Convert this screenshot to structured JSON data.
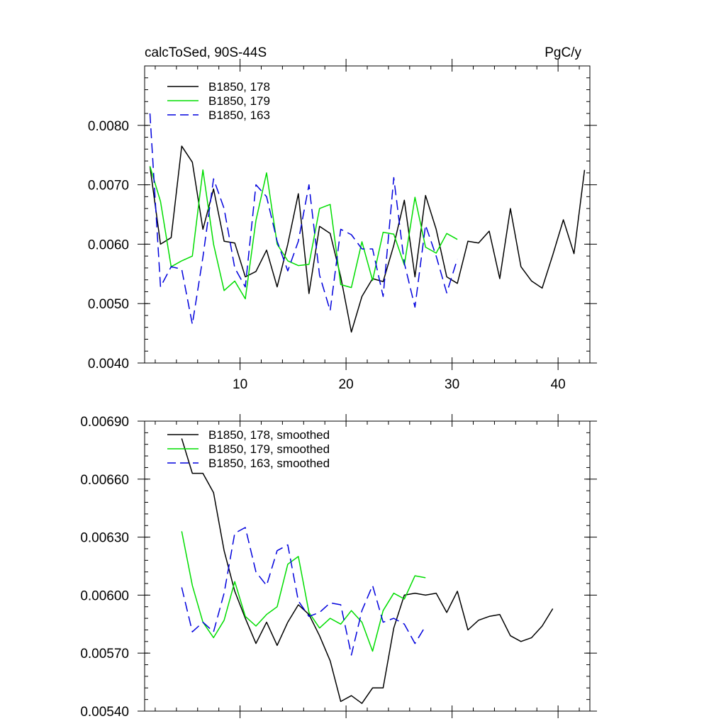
{
  "chart_data": [
    {
      "type": "line",
      "title": "calcToSed, 90S-44S",
      "units": "PgC/y",
      "xlim": [
        1,
        43
      ],
      "ylim": [
        0.004,
        0.009
      ],
      "xticks": [
        10,
        20,
        30,
        40
      ],
      "xtick_labels": [
        "10",
        "20",
        "30",
        "40"
      ],
      "yticks": [
        0.004,
        0.005,
        0.006,
        0.007,
        0.008
      ],
      "ytick_labels": [
        "0.0040",
        "0.0050",
        "0.0060",
        "0.0070",
        "0.0080"
      ],
      "grid": false,
      "legend_position": "top-left",
      "series": [
        {
          "name": "B1850, 178",
          "color": "#000000",
          "dash": "solid",
          "x": [
            1.5,
            2.5,
            3.5,
            4.5,
            5.5,
            6.5,
            7.5,
            8.5,
            9.5,
            10.5,
            11.5,
            12.5,
            13.5,
            14.5,
            15.5,
            16.5,
            17.5,
            18.5,
            19.5,
            20.5,
            21.5,
            22.5,
            23.5,
            24.5,
            25.5,
            26.5,
            27.5,
            28.5,
            29.5,
            30.5,
            31.5,
            32.5,
            33.5,
            34.5,
            35.5,
            36.5,
            37.5,
            38.5,
            39.5,
            40.5,
            41.5,
            42.5
          ],
          "values": [
            0.00731,
            0.006,
            0.00611,
            0.00765,
            0.00738,
            0.00625,
            0.00693,
            0.00605,
            0.00602,
            0.00545,
            0.00554,
            0.0059,
            0.00528,
            0.006,
            0.00685,
            0.00517,
            0.0063,
            0.00618,
            0.00545,
            0.00452,
            0.00512,
            0.00542,
            0.00537,
            0.00598,
            0.00674,
            0.00545,
            0.00682,
            0.00625,
            0.00545,
            0.00534,
            0.00605,
            0.00602,
            0.00622,
            0.00542,
            0.0066,
            0.00562,
            0.00538,
            0.00526,
            0.00582,
            0.00641,
            0.00584,
            0.00725
          ]
        },
        {
          "name": "B1850, 179",
          "color": "#00dd00",
          "dash": "solid",
          "x": [
            1.5,
            2.5,
            3.5,
            4.5,
            5.5,
            6.5,
            7.5,
            8.5,
            9.5,
            10.5,
            11.5,
            12.5,
            13.5,
            14.5,
            15.5,
            16.5,
            17.5,
            18.5,
            19.5,
            20.5,
            21.5,
            22.5,
            23.5,
            24.5,
            25.5,
            26.5,
            27.5,
            28.5,
            29.5,
            30.5
          ],
          "values": [
            0.00731,
            0.00672,
            0.00562,
            0.00572,
            0.0058,
            0.00725,
            0.006,
            0.00522,
            0.00538,
            0.00508,
            0.0064,
            0.0072,
            0.006,
            0.00572,
            0.00564,
            0.00566,
            0.0066,
            0.00667,
            0.00532,
            0.00527,
            0.00604,
            0.00539,
            0.0062,
            0.00617,
            0.00565,
            0.00679,
            0.00595,
            0.00585,
            0.00618,
            0.00608
          ]
        },
        {
          "name": "B1850, 163",
          "color": "#0000dd",
          "dash": "dashed",
          "x": [
            1.5,
            2.5,
            3.5,
            4.5,
            5.5,
            6.5,
            7.5,
            8.5,
            9.5,
            10.5,
            11.5,
            12.5,
            13.5,
            14.5,
            15.5,
            16.5,
            17.5,
            18.5,
            19.5,
            20.5,
            21.5,
            22.5,
            23.5,
            24.5,
            25.5,
            26.5,
            27.5,
            28.5,
            29.5,
            30.5
          ],
          "values": [
            0.0082,
            0.00528,
            0.00562,
            0.00558,
            0.00465,
            0.00578,
            0.0071,
            0.0066,
            0.0056,
            0.00528,
            0.007,
            0.0068,
            0.00605,
            0.00555,
            0.00605,
            0.007,
            0.00548,
            0.00488,
            0.00625,
            0.00616,
            0.00592,
            0.00592,
            0.00512,
            0.00712,
            0.00568,
            0.00494,
            0.00632,
            0.0058,
            0.00518,
            0.00575
          ]
        }
      ]
    },
    {
      "type": "line",
      "title": "",
      "xlim": [
        1,
        43
      ],
      "ylim": [
        0.0054,
        0.0069
      ],
      "xticks": [
        10,
        20,
        30,
        40
      ],
      "xtick_labels": [],
      "yticks": [
        0.0054,
        0.0057,
        0.006,
        0.0063,
        0.0066,
        0.0069
      ],
      "ytick_labels": [
        "0.00540",
        "0.00570",
        "0.00600",
        "0.00630",
        "0.00660",
        "0.00690"
      ],
      "grid": false,
      "legend_position": "top-left",
      "series": [
        {
          "name": "B1850, 178, smoothed",
          "color": "#000000",
          "dash": "solid",
          "x": [
            4.5,
            5.5,
            6.5,
            7.5,
            8.5,
            9.5,
            10.5,
            11.5,
            12.5,
            13.5,
            14.5,
            15.5,
            16.5,
            17.5,
            18.5,
            19.5,
            20.5,
            21.5,
            22.5,
            23.5,
            24.5,
            25.5,
            26.5,
            27.5,
            28.5,
            29.5,
            30.5,
            31.5,
            32.5,
            33.5,
            34.5,
            35.5,
            36.5,
            37.5,
            38.5,
            39.5
          ],
          "values": [
            0.00681,
            0.00663,
            0.00663,
            0.00653,
            0.00623,
            0.00602,
            0.00588,
            0.00575,
            0.00586,
            0.00574,
            0.00586,
            0.00595,
            0.0059,
            0.00579,
            0.00566,
            0.00545,
            0.00548,
            0.00544,
            0.00552,
            0.00552,
            0.00583,
            0.006,
            0.00601,
            0.006,
            0.00601,
            0.00591,
            0.00602,
            0.00582,
            0.00587,
            0.00589,
            0.0059,
            0.00579,
            0.00576,
            0.00578,
            0.00584,
            0.00593
          ]
        },
        {
          "name": "B1850, 179, smoothed",
          "color": "#00dd00",
          "dash": "solid",
          "x": [
            4.5,
            5.5,
            6.5,
            7.5,
            8.5,
            9.5,
            10.5,
            11.5,
            12.5,
            13.5,
            14.5,
            15.5,
            16.5,
            17.5,
            18.5,
            19.5,
            20.5,
            21.5,
            22.5,
            23.5,
            24.5,
            25.5,
            26.5,
            27.5
          ],
          "values": [
            0.00633,
            0.00605,
            0.00586,
            0.00578,
            0.00587,
            0.00607,
            0.00589,
            0.00584,
            0.0059,
            0.00594,
            0.00616,
            0.0062,
            0.00591,
            0.00583,
            0.00588,
            0.00585,
            0.00592,
            0.00586,
            0.00571,
            0.00592,
            0.00601,
            0.00598,
            0.0061,
            0.00609
          ]
        },
        {
          "name": "B1850, 163, smoothed",
          "color": "#0000dd",
          "dash": "dashed",
          "x": [
            4.5,
            5.5,
            6.5,
            7.5,
            8.5,
            9.5,
            10.5,
            11.5,
            12.5,
            13.5,
            14.5,
            15.5,
            16.5,
            17.5,
            18.5,
            19.5,
            20.5,
            21.5,
            22.5,
            23.5,
            24.5,
            25.5,
            26.5,
            27.5
          ],
          "values": [
            0.00604,
            0.00581,
            0.00586,
            0.00581,
            0.00601,
            0.00632,
            0.00635,
            0.00612,
            0.00605,
            0.00623,
            0.00626,
            0.00597,
            0.00589,
            0.00591,
            0.00596,
            0.00595,
            0.00569,
            0.00592,
            0.00605,
            0.00586,
            0.00588,
            0.00585,
            0.00575,
            0.00584
          ]
        }
      ]
    }
  ]
}
